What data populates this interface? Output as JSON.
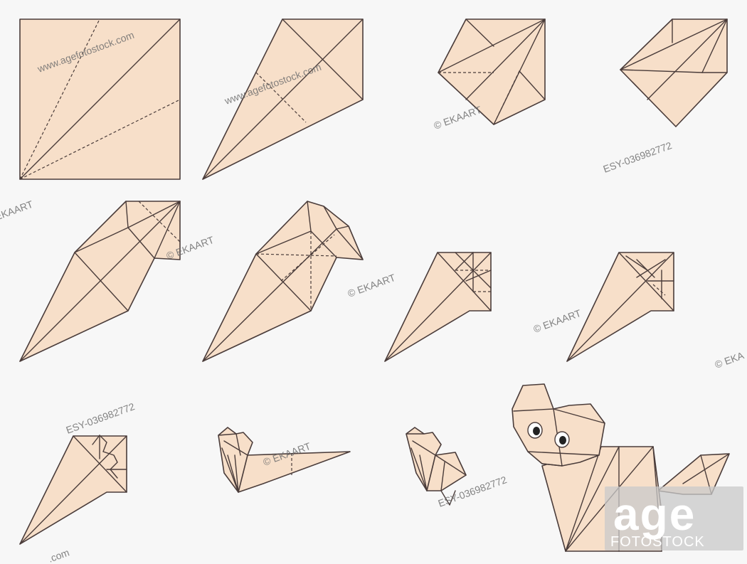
{
  "figure": {
    "subject": "origami-fox",
    "step_count": 12,
    "colors": {
      "paper": "#f7dfc9",
      "line": "#4a3c3a",
      "background": "#f7f7f7"
    }
  },
  "watermarks": {
    "agefotostock_1": "www.agefotostock.com",
    "agefotostock_2": "www.agefotostock.com",
    "ekaart_1": "© EKAART",
    "ekaart_2": "© EKAART",
    "ekaart_3": "© EKAART",
    "ekaart_4": "© EKAART",
    "ekaart_5": "© EKAART",
    "ekaart_edge_left": "EKAART",
    "ekaart_edge_right": "© EKA",
    "code_1": "ESY-036982772",
    "code_2": "ESY-036982772",
    "code_3": "ESY-036982772",
    "com_fragment": ".com",
    "logo_top": "age",
    "logo_bottom": "FOTOSTOCK"
  }
}
